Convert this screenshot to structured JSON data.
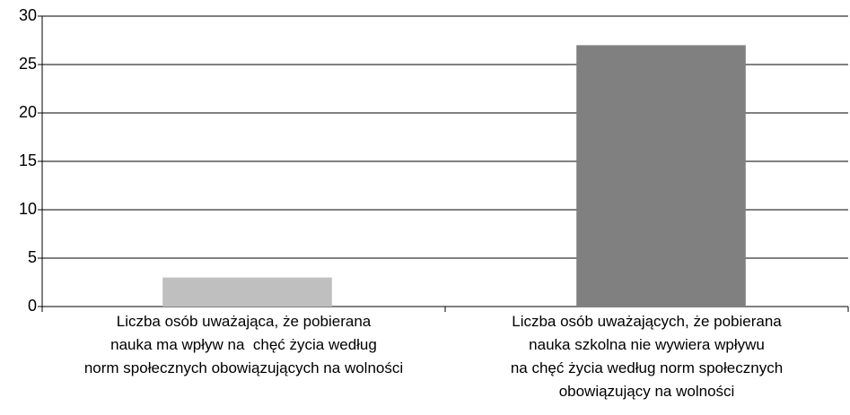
{
  "chart_data": {
    "type": "bar",
    "categories": [
      "Liczba osób uważająca, że pobierana\nnauka ma wpływ na  chęć życia według\nnorm społecznych obowiązujących na wolności",
      "Liczba osób uważających, że pobierana\nnauka szkolna nie wywiera wpływu\nna chęć życia według norm społecznych\nobowiązujący na wolności"
    ],
    "values": [
      3,
      27
    ],
    "colors": [
      "#bfbfbf",
      "#808080"
    ],
    "ylim": [
      0,
      30
    ],
    "yticks": [
      0,
      5,
      10,
      15,
      20,
      25,
      30
    ],
    "grid": true
  }
}
